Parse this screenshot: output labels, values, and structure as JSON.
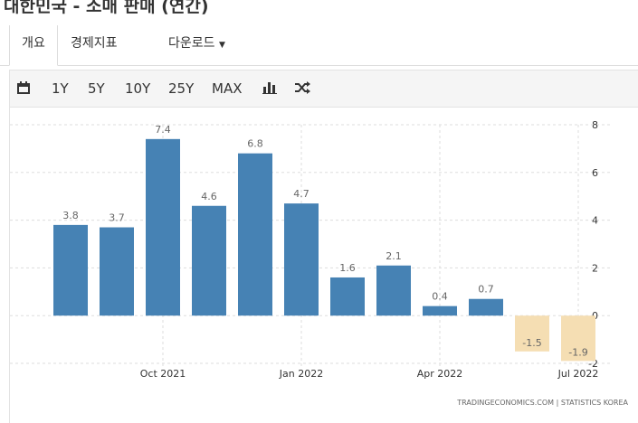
{
  "header": {
    "title": "대한민국 - 소매 판매 (연간)"
  },
  "tabs": [
    "개요",
    "경제지표",
    "다운로드"
  ],
  "toolbar": {
    "ranges": [
      "1Y",
      "5Y",
      "10Y",
      "25Y",
      "MAX"
    ]
  },
  "chart_data": {
    "type": "bar",
    "categories": [
      null,
      null,
      "Oct 2021",
      null,
      null,
      "Jan 2022",
      null,
      null,
      "Apr 2022",
      null,
      null,
      "Jul 2022"
    ],
    "series": [
      {
        "color": "#4682b4",
        "negative_color": "#f5deb3",
        "values": [
          3.8,
          3.7,
          7.4,
          4.6,
          6.8,
          4.7,
          1.6,
          2.1,
          0.4,
          0.7,
          -1.5,
          -1.9
        ]
      }
    ],
    "ylim": [
      -2,
      8
    ],
    "yticks": [
      -2,
      0,
      2,
      4,
      6,
      8
    ],
    "grid": true,
    "source": "TRADINGECONOMICS.COM  |  STATISTICS KOREA"
  }
}
